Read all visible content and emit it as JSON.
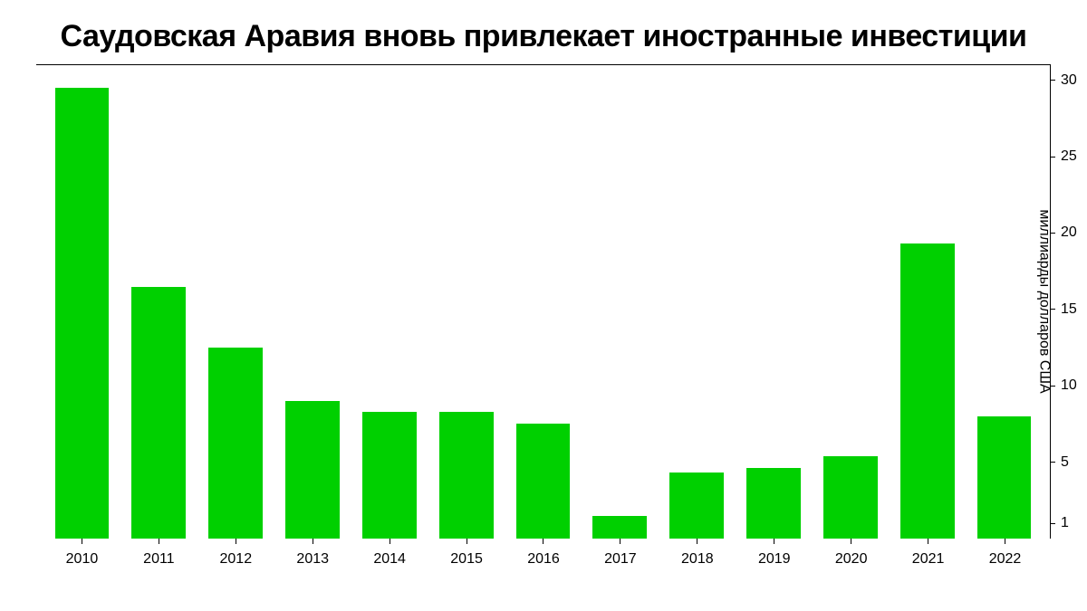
{
  "chart": {
    "type": "bar",
    "title": "Саудовская Аравия вновь привлекает иностранные инвестиции",
    "title_fontsize": 34,
    "title_fontweight": 900,
    "title_color": "#000000",
    "ylabel": "миллиарды долларов США",
    "ylabel_fontsize": 16,
    "categories": [
      "2010",
      "2011",
      "2012",
      "2013",
      "2014",
      "2015",
      "2016",
      "2017",
      "2018",
      "2019",
      "2020",
      "2021",
      "2022"
    ],
    "values": [
      29.5,
      16.5,
      12.5,
      9.0,
      8.3,
      8.3,
      7.5,
      1.5,
      4.3,
      4.6,
      5.4,
      19.3,
      8.0
    ],
    "bar_color": "#00d000",
    "background_color": "#ffffff",
    "axis_color": "#000000",
    "ylim": [
      0,
      31
    ],
    "yticks": [
      1,
      5,
      10,
      15,
      20,
      25,
      30
    ],
    "xtick_fontsize": 16,
    "ytick_fontsize": 16,
    "bar_width_ratio": 0.82
  }
}
